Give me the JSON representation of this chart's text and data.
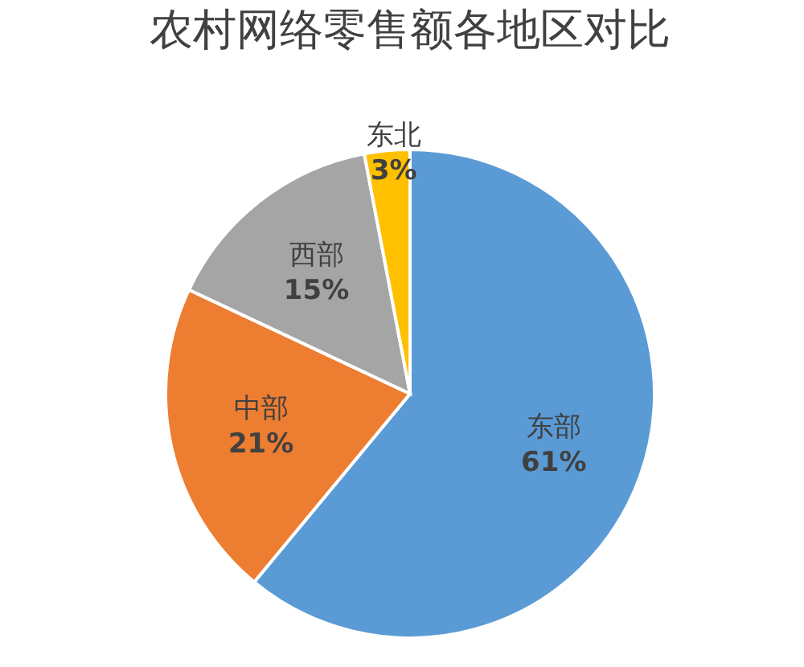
{
  "chart_data": {
    "type": "pie",
    "title": "农村网络零售额各地区对比",
    "categories": [
      "东部",
      "中部",
      "西部",
      "东北"
    ],
    "values": [
      61,
      21,
      15,
      3
    ],
    "value_labels": [
      "61%",
      "21%",
      "15%",
      "3%"
    ],
    "colors": [
      "#5b9bd5",
      "#ed7d31",
      "#a5a5a5",
      "#ffc000"
    ]
  }
}
